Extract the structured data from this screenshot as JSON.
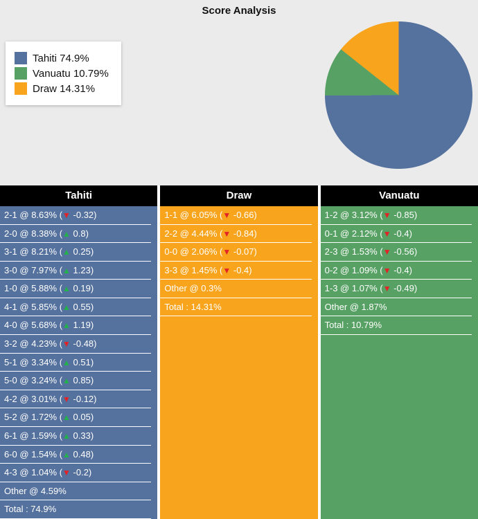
{
  "title": "Score Analysis",
  "arrow_colors": {
    "up": "#23b14d",
    "down": "#e32227"
  },
  "legend": {
    "items": [
      {
        "label": "Tahiti 74.9%",
        "color": "#55719d"
      },
      {
        "label": "Vanuatu 10.79%",
        "color": "#57a164"
      },
      {
        "label": "Draw 14.31%",
        "color": "#f9a41d"
      }
    ]
  },
  "chart_data": {
    "type": "pie",
    "title": "Score Analysis",
    "slices": [
      {
        "label": "Tahiti",
        "value": 74.9,
        "color": "#55719d"
      },
      {
        "label": "Vanuatu",
        "value": 10.79,
        "color": "#57a164"
      },
      {
        "label": "Draw",
        "value": 14.31,
        "color": "#f9a41d"
      }
    ],
    "start_angle_deg": 0,
    "direction": "clockwise",
    "legend_position": "left"
  },
  "columns": [
    {
      "header": "Tahiti",
      "color": "#55719d",
      "rows": [
        {
          "text": "2-1 @ 8.63%",
          "dir": "down",
          "delta": "-0.32"
        },
        {
          "text": "2-0 @ 8.38%",
          "dir": "up",
          "delta": "0.8"
        },
        {
          "text": "3-1 @ 8.21%",
          "dir": "up",
          "delta": "0.25"
        },
        {
          "text": "3-0 @ 7.97%",
          "dir": "up",
          "delta": "1.23"
        },
        {
          "text": "1-0 @ 5.88%",
          "dir": "up",
          "delta": "0.19"
        },
        {
          "text": "4-1 @ 5.85%",
          "dir": "up",
          "delta": "0.55"
        },
        {
          "text": "4-0 @ 5.68%",
          "dir": "up",
          "delta": "1.19"
        },
        {
          "text": "3-2 @ 4.23%",
          "dir": "down",
          "delta": "-0.48"
        },
        {
          "text": "5-1 @ 3.34%",
          "dir": "up",
          "delta": "0.51"
        },
        {
          "text": "5-0 @ 3.24%",
          "dir": "up",
          "delta": "0.85"
        },
        {
          "text": "4-2 @ 3.01%",
          "dir": "down",
          "delta": "-0.12"
        },
        {
          "text": "5-2 @ 1.72%",
          "dir": "up",
          "delta": "0.05"
        },
        {
          "text": "6-1 @ 1.59%",
          "dir": "up",
          "delta": "0.33"
        },
        {
          "text": "6-0 @ 1.54%",
          "dir": "up",
          "delta": "0.48"
        },
        {
          "text": "4-3 @ 1.04%",
          "dir": "down",
          "delta": "-0.2"
        },
        {
          "text": "Other @ 4.59%"
        },
        {
          "text": "Total : 74.9%"
        }
      ]
    },
    {
      "header": "Draw",
      "color": "#f9a41d",
      "rows": [
        {
          "text": "1-1 @ 6.05%",
          "dir": "down",
          "delta": "-0.66"
        },
        {
          "text": "2-2 @ 4.44%",
          "dir": "down",
          "delta": "-0.84"
        },
        {
          "text": "0-0 @ 2.06%",
          "dir": "down",
          "delta": "-0.07"
        },
        {
          "text": "3-3 @ 1.45%",
          "dir": "down",
          "delta": "-0.4"
        },
        {
          "text": "Other @ 0.3%"
        },
        {
          "text": "Total : 14.31%"
        }
      ]
    },
    {
      "header": "Vanuatu",
      "color": "#57a164",
      "rows": [
        {
          "text": "1-2 @ 3.12%",
          "dir": "down",
          "delta": "-0.85"
        },
        {
          "text": "0-1 @ 2.12%",
          "dir": "down",
          "delta": "-0.4"
        },
        {
          "text": "2-3 @ 1.53%",
          "dir": "down",
          "delta": "-0.56"
        },
        {
          "text": "0-2 @ 1.09%",
          "dir": "down",
          "delta": "-0.4"
        },
        {
          "text": "1-3 @ 1.07%",
          "dir": "down",
          "delta": "-0.49"
        },
        {
          "text": "Other @ 1.87%"
        },
        {
          "text": "Total : 10.79%"
        }
      ]
    }
  ]
}
